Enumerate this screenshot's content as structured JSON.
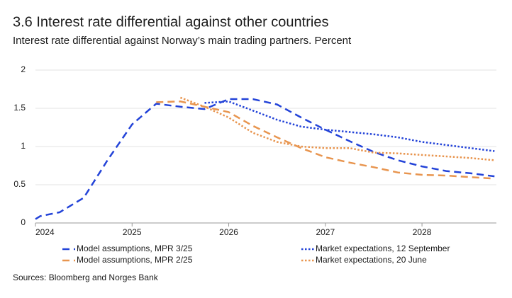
{
  "chart_data": {
    "type": "line",
    "title": "3.6 Interest rate differential against other countries",
    "subtitle": "Interest rate differential against Norway’s main trading partners. Percent",
    "source": "Sources: Bloomberg and Norges Bank",
    "xlim": [
      2024,
      2028.77
    ],
    "xticks": [
      2024,
      2025,
      2026,
      2027,
      2028
    ],
    "ylim": [
      0,
      2
    ],
    "yticks": [
      0,
      0.5,
      1,
      1.5,
      2
    ],
    "grid": true,
    "series": [
      {
        "name": "Model assumptions, MPR 3/25",
        "color": "#2343d8",
        "style": "dashed",
        "x": [
          2024.0,
          2024.05,
          2024.25,
          2024.5,
          2024.75,
          2025.0,
          2025.25,
          2025.5,
          2025.75,
          2026.0,
          2026.25,
          2026.5,
          2026.75,
          2027.0,
          2027.25,
          2027.5,
          2027.75,
          2028.0,
          2028.25,
          2028.5,
          2028.75
        ],
        "values": [
          0.05,
          0.09,
          0.14,
          0.33,
          0.83,
          1.29,
          1.56,
          1.52,
          1.49,
          1.62,
          1.62,
          1.55,
          1.38,
          1.22,
          1.07,
          0.93,
          0.82,
          0.74,
          0.68,
          0.65,
          0.61
        ]
      },
      {
        "name": "Model assumptions, MPR 2/25",
        "color": "#e8954f",
        "style": "dashed",
        "x": [
          2025.25,
          2025.5,
          2025.75,
          2026.0,
          2026.25,
          2026.5,
          2026.75,
          2027.0,
          2027.25,
          2027.5,
          2027.75,
          2028.0,
          2028.25,
          2028.5,
          2028.75
        ],
        "values": [
          1.58,
          1.59,
          1.52,
          1.45,
          1.27,
          1.12,
          0.98,
          0.86,
          0.79,
          0.73,
          0.66,
          0.63,
          0.62,
          0.6,
          0.58
        ]
      },
      {
        "name": "Market expectations, 12 September",
        "color": "#2343d8",
        "style": "dotted",
        "x": [
          2025.75,
          2026.0,
          2026.25,
          2026.5,
          2026.75,
          2027.0,
          2027.25,
          2027.5,
          2027.75,
          2028.0,
          2028.25,
          2028.5,
          2028.75
        ],
        "values": [
          1.57,
          1.59,
          1.47,
          1.35,
          1.26,
          1.22,
          1.19,
          1.16,
          1.12,
          1.06,
          1.02,
          0.98,
          0.94
        ]
      },
      {
        "name": "Market expectations, 20 June",
        "color": "#e8954f",
        "style": "dotted",
        "x": [
          2025.5,
          2025.75,
          2026.0,
          2026.25,
          2026.5,
          2026.75,
          2027.0,
          2027.25,
          2027.5,
          2027.75,
          2028.0,
          2028.25,
          2028.5,
          2028.75
        ],
        "values": [
          1.64,
          1.52,
          1.38,
          1.18,
          1.06,
          1.0,
          0.98,
          0.98,
          0.92,
          0.91,
          0.89,
          0.87,
          0.85,
          0.82
        ]
      }
    ]
  }
}
